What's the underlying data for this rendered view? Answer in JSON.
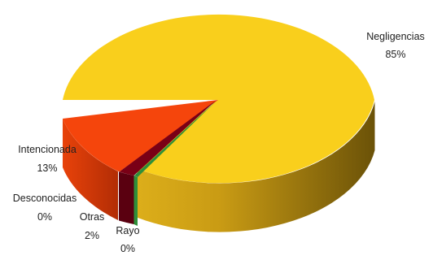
{
  "chart_data": {
    "type": "pie",
    "title": "",
    "slices": [
      {
        "label": "Negligencias",
        "value": 85,
        "value_label": "85%",
        "color": "#f9cf1c"
      },
      {
        "label": "Intencionada",
        "value": 13,
        "value_label": "13%",
        "color": "#f5450c"
      },
      {
        "label": "Desconocidas",
        "value": 0,
        "value_label": "0%",
        "color": "#7a7a7a"
      },
      {
        "label": "Otras",
        "value": 2,
        "value_label": "2%",
        "color": "#7a0016"
      },
      {
        "label": "Rayo",
        "value": 0,
        "value_label": "0%",
        "color": "#2f8f3a"
      }
    ],
    "legend": "none",
    "style": "3d-exploded"
  }
}
